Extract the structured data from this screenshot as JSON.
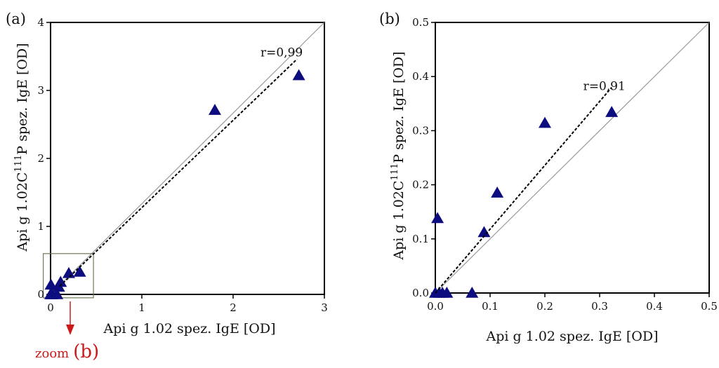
{
  "colors": {
    "marker": "#0d0d80",
    "zoom": "#cc1a1a",
    "identity_line": "#999999",
    "zoom_box": "#6e7a5a",
    "axis": "#000000"
  },
  "zoom_annotation": {
    "text": "zoom",
    "panel_ref": "(b)"
  },
  "chart_data": [
    {
      "type": "scatter",
      "panel_label": "(a)",
      "xlabel": "Api g 1.02 spez. IgE [OD]",
      "ylabel": {
        "prefix": "Api g 1.02C",
        "superscript": "111",
        "suffix": "P spez. IgE [OD]"
      },
      "xlim": [
        0,
        3
      ],
      "ylim": [
        0,
        4
      ],
      "x_ticks": [
        0,
        1,
        2,
        3
      ],
      "x_tick_labels": [
        "0",
        "1",
        "2",
        "3"
      ],
      "y_ticks": [
        0,
        1,
        2,
        3,
        4
      ],
      "y_tick_labels": [
        "0",
        "1",
        "2",
        "3",
        "4"
      ],
      "grid": false,
      "marker": "triangle",
      "points": [
        {
          "x": 2.72,
          "y": 3.22
        },
        {
          "x": 1.8,
          "y": 2.71
        },
        {
          "x": 0.32,
          "y": 0.33
        },
        {
          "x": 0.2,
          "y": 0.31
        },
        {
          "x": 0.11,
          "y": 0.18
        },
        {
          "x": 0.09,
          "y": 0.11
        },
        {
          "x": 0.004,
          "y": 0.14
        },
        {
          "x": 0.0,
          "y": 0.0
        },
        {
          "x": 0.01,
          "y": 0.0
        },
        {
          "x": 0.02,
          "y": 0.0
        },
        {
          "x": 0.07,
          "y": 0.0
        }
      ],
      "identity_line": {
        "from": [
          0,
          0
        ],
        "to": [
          3,
          4
        ]
      },
      "fit_line": {
        "from": [
          0.1,
          0.12
        ],
        "to": [
          2.7,
          3.46
        ]
      },
      "r_label": {
        "text": "r=0,99",
        "x": 2.3,
        "y": 3.5
      },
      "zoom_box": {
        "xlim": [
          -0.08,
          0.47
        ],
        "ylim": [
          -0.05,
          0.6
        ]
      }
    },
    {
      "type": "scatter",
      "panel_label": "(b)",
      "xlabel": "Api g 1.02 spez. IgE [OD]",
      "ylabel": {
        "prefix": "Api g 1.02C",
        "superscript": "111",
        "suffix": "P spez. IgE [OD]"
      },
      "xlim": [
        0,
        0.5
      ],
      "ylim": [
        0,
        0.5
      ],
      "x_ticks": [
        0,
        0.1,
        0.2,
        0.3,
        0.4,
        0.5
      ],
      "x_tick_labels": [
        "0.0",
        "0.1",
        "0.2",
        "0.3",
        "0.4",
        "0.5"
      ],
      "y_ticks": [
        0,
        0.1,
        0.2,
        0.3,
        0.4,
        0.5
      ],
      "y_tick_labels": [
        "0.0",
        "0.1",
        "0.2",
        "0.3",
        "0.4",
        "0.5"
      ],
      "grid": false,
      "marker": "triangle",
      "points": [
        {
          "x": 0.322,
          "y": 0.334
        },
        {
          "x": 0.2,
          "y": 0.314
        },
        {
          "x": 0.113,
          "y": 0.185
        },
        {
          "x": 0.089,
          "y": 0.112
        },
        {
          "x": 0.004,
          "y": 0.138
        },
        {
          "x": 0.0,
          "y": 0.0
        },
        {
          "x": 0.007,
          "y": 0.0
        },
        {
          "x": 0.013,
          "y": 0.0
        },
        {
          "x": 0.021,
          "y": 0.0
        },
        {
          "x": 0.067,
          "y": 0.0
        }
      ],
      "identity_line": {
        "from": [
          0,
          0
        ],
        "to": [
          0.5,
          0.5
        ]
      },
      "fit_line": {
        "from": [
          0.0,
          0.0
        ],
        "to": [
          0.322,
          0.38
        ]
      },
      "r_label": {
        "text": "r=0,91",
        "x": 0.27,
        "y": 0.375
      }
    }
  ]
}
